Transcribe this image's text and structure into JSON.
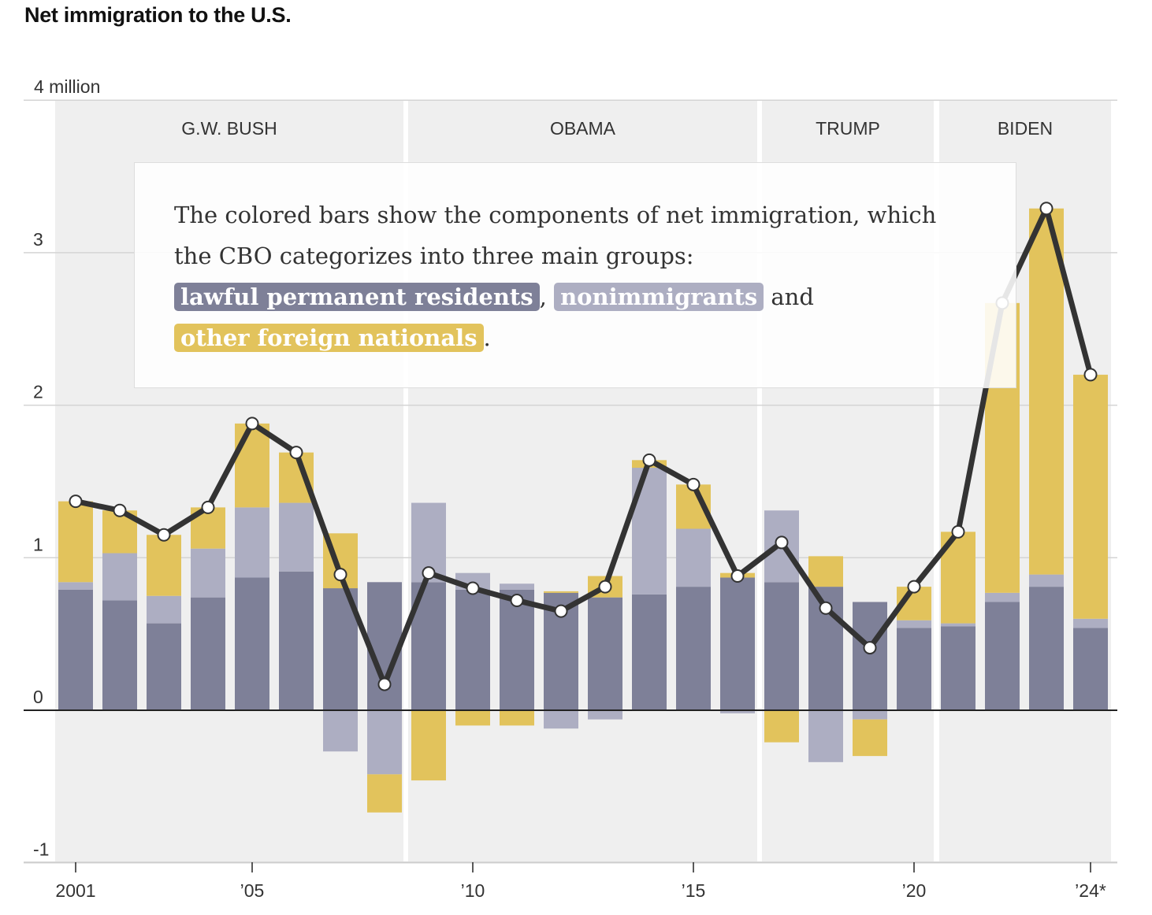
{
  "title": "Net immigration to the U.S.",
  "annotation": {
    "text1": "The colored bars show the components of net immigration, which the CBO categorizes into three main groups:",
    "lpr": "lawful permanent residents",
    "comma": ",",
    "nonimm": "nonimmigrants",
    "and": "and",
    "other": "other foreign nationals",
    "period": "."
  },
  "chart_data": {
    "type": "bar",
    "stacked": true,
    "title": "Net immigration to the U.S.",
    "ylabel": "million",
    "ylim": [
      -1,
      4
    ],
    "yticks": [
      {
        "v": 4,
        "label": "4 million"
      },
      {
        "v": 3,
        "label": "3"
      },
      {
        "v": 2,
        "label": "2"
      },
      {
        "v": 1,
        "label": "1"
      },
      {
        "v": 0,
        "label": "0"
      },
      {
        "v": -1,
        "label": "-1"
      }
    ],
    "xticks": [
      {
        "year": 2001,
        "label": "2001"
      },
      {
        "year": 2005,
        "label": "’05"
      },
      {
        "year": 2010,
        "label": "’10"
      },
      {
        "year": 2015,
        "label": "’15"
      },
      {
        "year": 2020,
        "label": "’20"
      },
      {
        "year": 2024,
        "label": "’24*"
      }
    ],
    "years": [
      2001,
      2002,
      2003,
      2004,
      2005,
      2006,
      2007,
      2008,
      2009,
      2010,
      2011,
      2012,
      2013,
      2014,
      2015,
      2016,
      2017,
      2018,
      2019,
      2020,
      2021,
      2022,
      2023,
      2024
    ],
    "series": [
      {
        "name": "lawful permanent residents",
        "color": "#7e8098",
        "values": [
          0.79,
          0.72,
          0.57,
          0.74,
          0.87,
          0.91,
          0.8,
          0.84,
          0.84,
          0.79,
          0.79,
          0.77,
          0.74,
          0.76,
          0.81,
          0.87,
          0.84,
          0.81,
          0.71,
          0.54,
          0.55,
          0.71,
          0.81,
          0.54
        ]
      },
      {
        "name": "nonimmigrants",
        "color": "#adaec2",
        "values": [
          0.05,
          0.31,
          0.18,
          0.32,
          0.46,
          0.45,
          -0.27,
          -0.42,
          0.52,
          0.11,
          0.04,
          -0.12,
          -0.06,
          0.83,
          0.38,
          -0.02,
          0.47,
          -0.34,
          -0.06,
          0.05,
          0.02,
          0.06,
          0.08,
          0.06
        ]
      },
      {
        "name": "other foreign nationals",
        "color": "#e2c35c",
        "values": [
          0.53,
          0.28,
          0.4,
          0.27,
          0.55,
          0.33,
          0.36,
          -0.25,
          -0.46,
          -0.1,
          -0.1,
          0.01,
          0.14,
          0.05,
          0.29,
          0.03,
          -0.21,
          0.2,
          -0.24,
          0.22,
          0.6,
          1.9,
          2.4,
          1.6
        ]
      }
    ],
    "total_line": {
      "name": "net immigration",
      "color": "#333333",
      "values": [
        1.37,
        1.31,
        1.15,
        1.33,
        1.88,
        1.69,
        0.89,
        0.17,
        0.9,
        0.8,
        0.72,
        0.65,
        0.81,
        1.64,
        1.48,
        0.88,
        1.1,
        0.67,
        0.41,
        0.81,
        1.17,
        2.67,
        3.29,
        2.2
      ]
    },
    "presidencies": [
      {
        "label": "G.W. BUSH",
        "from": 2001,
        "to": 2008
      },
      {
        "label": "OBAMA",
        "from": 2009,
        "to": 2016
      },
      {
        "label": "TRUMP",
        "from": 2017,
        "to": 2020
      },
      {
        "label": "BIDEN",
        "from": 2021,
        "to": 2024
      }
    ]
  }
}
